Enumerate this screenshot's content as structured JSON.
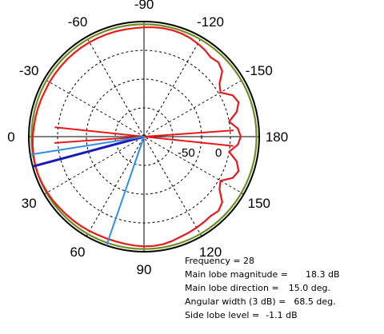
{
  "chart_data": {
    "type": "polar",
    "angle_tick_labels": [
      "-90",
      "-120",
      "-150",
      "180",
      "150",
      "120",
      "90",
      "60",
      "30",
      "0",
      "-30",
      "-60"
    ],
    "radial_tick_label": "-50",
    "radial_tick_label_2": "0",
    "series": [
      {
        "kind": "pattern",
        "color": "#e8191b",
        "theta_deg": [
          -15,
          -10,
          -5,
          0,
          5,
          10,
          15,
          20,
          25,
          30,
          35,
          40,
          45,
          50,
          55,
          60,
          65,
          70,
          75,
          80,
          85,
          90,
          95,
          100,
          105,
          110,
          115,
          120,
          125,
          130,
          135,
          140,
          145,
          150,
          155,
          160,
          165,
          170,
          175,
          180,
          -175,
          -170,
          -165,
          -160,
          -155,
          -150,
          -145,
          -140,
          -135,
          -130,
          -125,
          -120,
          -115,
          -110,
          -105,
          -100,
          -95,
          -90,
          -85,
          -80,
          -75,
          -70,
          -65,
          -60,
          -55,
          -50,
          -45,
          -40,
          -35,
          -30,
          -25,
          -20
        ],
        "gain_db": [
          -1.4,
          -1.3,
          -1.2,
          -1.0,
          -0.9,
          -0.8,
          -0.7,
          -0.7,
          -0.8,
          -0.9,
          -1.0,
          -1.2,
          -1.3,
          -1.4,
          -1.5,
          -1.6,
          -1.7,
          -1.7,
          -1.7,
          -1.6,
          -1.5,
          -1.4,
          -1.4,
          -1.5,
          -1.8,
          -2.2,
          -2.4,
          -2.6,
          -2.8,
          -3.0,
          -2.6,
          -3.4,
          -6.0,
          -7.0,
          -4.5,
          -3.8,
          -5.0,
          -7.5,
          -5.5,
          -4.8,
          -5.5,
          -7.5,
          -5.0,
          -3.8,
          -4.5,
          -7.0,
          -6.0,
          -3.4,
          -2.6,
          -3.0,
          -2.4,
          -2.0,
          -1.6,
          -1.4,
          -1.3,
          -1.3,
          -1.4,
          -1.5,
          -1.6,
          -1.6,
          -1.6,
          -1.6,
          -1.6,
          -1.6,
          -1.6,
          -1.6,
          -1.6,
          -1.6,
          -1.6,
          -1.6,
          -1.6,
          -1.5
        ]
      },
      {
        "kind": "reference-circle",
        "color": "#6c8f1f",
        "gain_db": -0.7
      },
      {
        "kind": "lobe-line",
        "color": "#e8191b",
        "angles_deg": [
          -6,
          4,
          174,
          -176
        ]
      },
      {
        "kind": "lobe-line",
        "color": "#1a1ab8",
        "angles_deg": [
          15
        ]
      },
      {
        "kind": "lobe-line",
        "color": "#2e8fe8",
        "angles_deg": [
          9,
          71
        ]
      }
    ],
    "annotations": {
      "frequency": "Frequency = 28",
      "main_lobe_magnitude_label": "Main lobe magnitude =",
      "main_lobe_magnitude": "18.3 dB",
      "main_lobe_direction_label": "Main lobe direction =",
      "main_lobe_direction": "15.0 deg.",
      "angular_width_label": "Angular width (3 dB) =",
      "angular_width": "68.5 deg.",
      "side_lobe_label": "Side lobe level =",
      "side_lobe": "-1.1 dB"
    }
  }
}
